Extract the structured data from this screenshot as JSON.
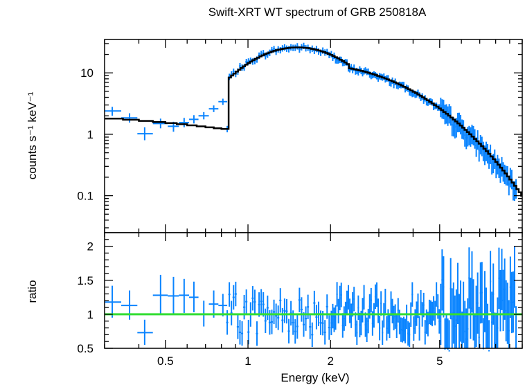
{
  "chart_data": [
    {
      "type": "scatter",
      "title": "Swift-XRT WT spectrum of GRB 250818A",
      "xlabel": "",
      "ylabel": "counts s⁻¹ keV⁻¹",
      "xscale": "log",
      "yscale": "log",
      "xlim": [
        0.3,
        10
      ],
      "ylim": [
        0.025,
        35
      ],
      "yticks": [
        {
          "value": 0.1,
          "label": "0.1"
        },
        {
          "value": 1,
          "label": "1"
        },
        {
          "value": 10,
          "label": "10"
        }
      ],
      "colors": {
        "data": "#0a84ff",
        "model": "#000000"
      },
      "series": [
        {
          "type": "errorbar",
          "points": [
            {
              "x": 0.32,
              "xlo": 0.3,
              "xhi": 0.345,
              "y": 2.4,
              "ylo": 2.0,
              "yhi": 2.8
            },
            {
              "x": 0.37,
              "xlo": 0.345,
              "xhi": 0.395,
              "y": 1.85,
              "ylo": 1.55,
              "yhi": 2.2
            },
            {
              "x": 0.42,
              "xlo": 0.395,
              "xhi": 0.45,
              "y": 1.02,
              "ylo": 0.8,
              "yhi": 1.3
            },
            {
              "x": 0.48,
              "xlo": 0.45,
              "xhi": 0.51,
              "y": 1.5,
              "ylo": 1.25,
              "yhi": 1.8
            },
            {
              "x": 0.535,
              "xlo": 0.51,
              "xhi": 0.56,
              "y": 1.35,
              "ylo": 1.1,
              "yhi": 1.6
            },
            {
              "x": 0.585,
              "xlo": 0.56,
              "xhi": 0.61,
              "y": 1.55,
              "ylo": 1.3,
              "yhi": 1.85
            },
            {
              "x": 0.635,
              "xlo": 0.61,
              "xhi": 0.66,
              "y": 1.75,
              "ylo": 1.5,
              "yhi": 2.05
            },
            {
              "x": 0.69,
              "xlo": 0.66,
              "xhi": 0.72,
              "y": 2.0,
              "ylo": 1.75,
              "yhi": 2.3
            },
            {
              "x": 0.75,
              "xlo": 0.72,
              "xhi": 0.78,
              "y": 2.6,
              "ylo": 2.3,
              "yhi": 2.95
            },
            {
              "x": 0.81,
              "xlo": 0.78,
              "xhi": 0.84,
              "y": 3.4,
              "ylo": 3.0,
              "yhi": 3.8
            }
          ]
        }
      ]
    },
    {
      "type": "scatter",
      "title": "",
      "xlabel": "Energy (keV)",
      "ylabel": "ratio",
      "xscale": "log",
      "yscale": "linear",
      "xlim": [
        0.3,
        10
      ],
      "ylim": [
        0.5,
        2.2
      ],
      "xticks": [
        {
          "value": 0.5,
          "label": "0.5"
        },
        {
          "value": 1,
          "label": "1"
        },
        {
          "value": 2,
          "label": "2"
        },
        {
          "value": 5,
          "label": "5"
        }
      ],
      "yticks": [
        {
          "value": 0.5,
          "label": "0.5"
        },
        {
          "value": 1,
          "label": "1"
        },
        {
          "value": 1.5,
          "label": "1.5"
        },
        {
          "value": 2,
          "label": "2"
        }
      ],
      "reference_line": {
        "y": 1,
        "color": "#33dd33"
      },
      "colors": {
        "data": "#0a84ff"
      },
      "series": [
        {
          "type": "errorbar",
          "points": [
            {
              "x": 0.32,
              "xlo": 0.3,
              "xhi": 0.345,
              "y": 1.18,
              "ylo": 0.95,
              "yhi": 1.42
            },
            {
              "x": 0.37,
              "xlo": 0.345,
              "xhi": 0.395,
              "y": 1.13,
              "ylo": 0.92,
              "yhi": 1.35
            },
            {
              "x": 0.42,
              "xlo": 0.395,
              "xhi": 0.45,
              "y": 0.73,
              "ylo": 0.55,
              "yhi": 0.92
            },
            {
              "x": 0.48,
              "xlo": 0.45,
              "xhi": 0.51,
              "y": 1.28,
              "ylo": 1.0,
              "yhi": 1.58
            },
            {
              "x": 0.535,
              "xlo": 0.51,
              "xhi": 0.56,
              "y": 1.27,
              "ylo": 1.0,
              "yhi": 1.55
            },
            {
              "x": 0.585,
              "xlo": 0.56,
              "xhi": 0.61,
              "y": 1.28,
              "ylo": 1.02,
              "yhi": 1.52
            },
            {
              "x": 0.635,
              "xlo": 0.61,
              "xhi": 0.66,
              "y": 1.25,
              "ylo": 1.03,
              "yhi": 1.48
            },
            {
              "x": 0.69,
              "xlo": 0.66,
              "xhi": 0.72,
              "y": 1.0,
              "ylo": 0.82,
              "yhi": 1.2
            },
            {
              "x": 0.75,
              "xlo": 0.72,
              "xhi": 0.78,
              "y": 1.15,
              "ylo": 0.95,
              "yhi": 1.35
            },
            {
              "x": 0.81,
              "xlo": 0.78,
              "xhi": 0.84,
              "y": 1.13,
              "ylo": 0.97,
              "yhi": 1.3
            }
          ]
        }
      ]
    }
  ]
}
